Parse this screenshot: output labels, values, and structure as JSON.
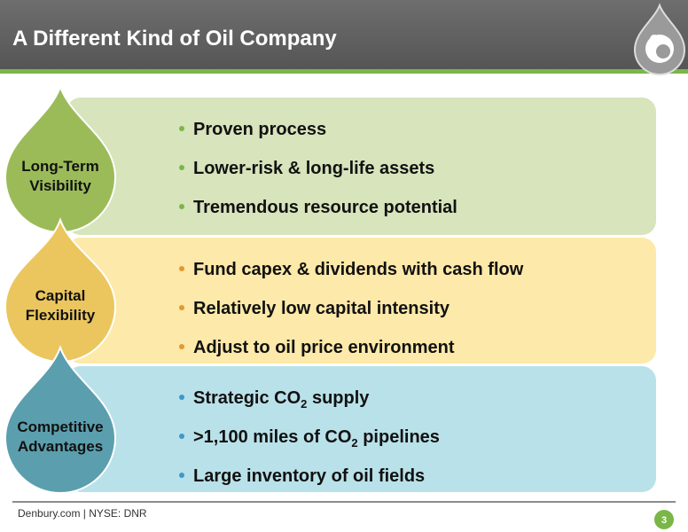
{
  "header": {
    "title": "A Different Kind of Oil Company"
  },
  "sections": [
    {
      "label": [
        "Long-Term",
        "Visibility"
      ],
      "bullets": [
        [
          {
            "text": "Proven process"
          }
        ],
        [
          {
            "text": "Lower-risk & long-life assets"
          }
        ],
        [
          {
            "text": "Tremendous resource potential"
          }
        ]
      ]
    },
    {
      "label": [
        "Capital",
        "Flexibility"
      ],
      "bullets": [
        [
          {
            "text": "Fund capex & dividends with cash flow"
          }
        ],
        [
          {
            "text": "Relatively low capital intensity"
          }
        ],
        [
          {
            "text": "Adjust to oil price environment"
          }
        ]
      ]
    },
    {
      "label": [
        "Competitive",
        "Advantages"
      ],
      "bullets": [
        [
          {
            "text": "Strategic CO"
          },
          {
            "sub": "2"
          },
          {
            "text": " supply"
          }
        ],
        [
          {
            "text": ">1,100 miles of CO"
          },
          {
            "sub": "2"
          },
          {
            "text": " pipelines"
          }
        ],
        [
          {
            "text": "Large inventory of oil fields"
          }
        ]
      ]
    }
  ],
  "footer": {
    "text": "Denbury.com | NYSE: DNR",
    "page": "3"
  }
}
